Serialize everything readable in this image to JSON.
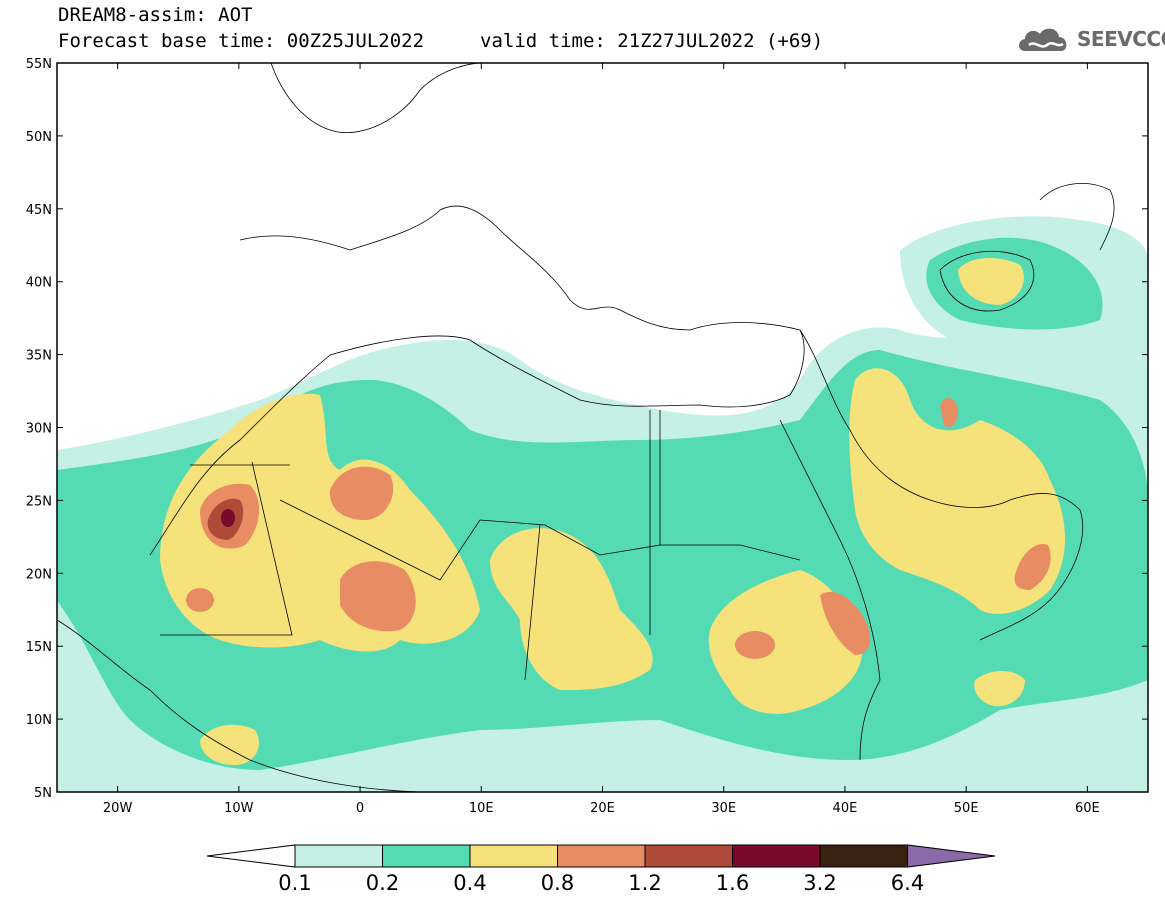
{
  "header": {
    "title_line1": "DREAM8-assim: AOT",
    "title_line2": "Forecast base time: 00Z25JUL2022",
    "title_line2b": "valid time: 21Z27JUL2022 (+69)"
  },
  "logo": {
    "text": "SEEVCCC",
    "icon": "cloud-logo-icon"
  },
  "map": {
    "lat_labels": [
      "55N",
      "50N",
      "45N",
      "40N",
      "35N",
      "30N",
      "25N",
      "20N",
      "15N",
      "10N",
      "5N"
    ],
    "lon_labels": [
      "20W",
      "10W",
      "0",
      "10E",
      "20E",
      "30E",
      "40E",
      "50E",
      "60E"
    ],
    "extent": {
      "lon_min": -25,
      "lon_max": 65,
      "lat_min": 5,
      "lat_max": 55
    }
  },
  "colorbar": {
    "labels": [
      "0.1",
      "0.2",
      "0.4",
      "0.8",
      "1.2",
      "1.6",
      "3.2",
      "6.4"
    ],
    "colors": [
      "#ffffff",
      "#c4f0e6",
      "#55dbb4",
      "#f5e27a",
      "#e88c64",
      "#b04a38",
      "#7a0a2a",
      "#3a2212",
      "#8a6aa8"
    ]
  },
  "legend": {
    "levels": [
      0.1,
      0.2,
      0.4,
      0.8,
      1.2,
      1.6,
      3.2,
      6.4
    ],
    "colors": [
      "#c4f0e6",
      "#55dbb4",
      "#f5e27a",
      "#e88c64",
      "#b04a38",
      "#7a0a2a",
      "#3a2212"
    ]
  }
}
